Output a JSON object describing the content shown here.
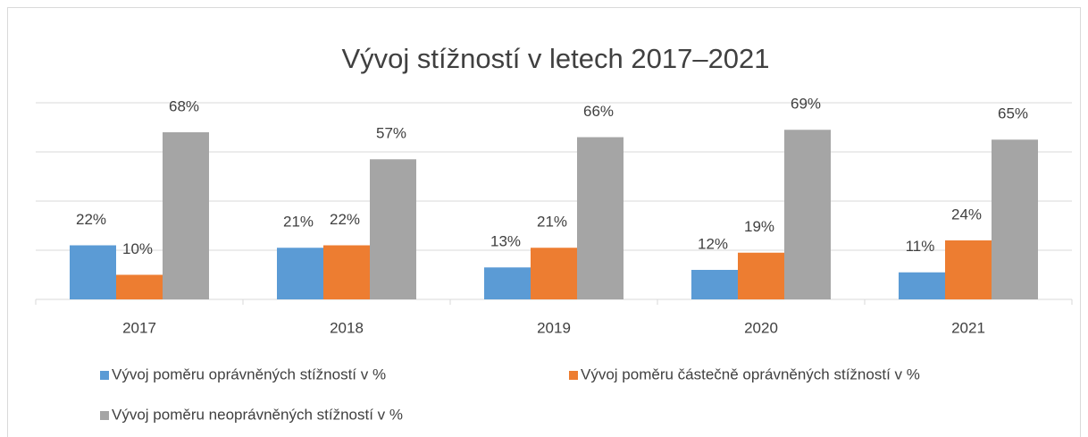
{
  "chart_data": {
    "type": "bar",
    "title": "Vývoj stížností v letech 2017–2021",
    "categories": [
      "2017",
      "2018",
      "2019",
      "2020",
      "2021"
    ],
    "series": [
      {
        "name": "Vývoj poměru oprávněných stížností v %",
        "color": "#5b9bd5",
        "values": [
          22,
          21,
          13,
          12,
          11
        ],
        "value_labels": [
          "22%",
          "21%",
          "13%",
          "12%",
          "11%"
        ]
      },
      {
        "name": "Vývoj poměru částečně oprávněných stížností v %",
        "color": "#ed7d31",
        "values": [
          10,
          22,
          21,
          19,
          24
        ],
        "value_labels": [
          "10%",
          "22%",
          "21%",
          "19%",
          "24%"
        ]
      },
      {
        "name": "Vývoj poměru neoprávněných stížností v %",
        "color": "#a5a5a5",
        "values": [
          68,
          57,
          66,
          69,
          65
        ],
        "value_labels": [
          "68%",
          "57%",
          "66%",
          "69%",
          "65%"
        ]
      }
    ],
    "ylim": [
      0,
      80
    ],
    "yticks": [
      0,
      20,
      40,
      60,
      80
    ],
    "grid": true
  }
}
